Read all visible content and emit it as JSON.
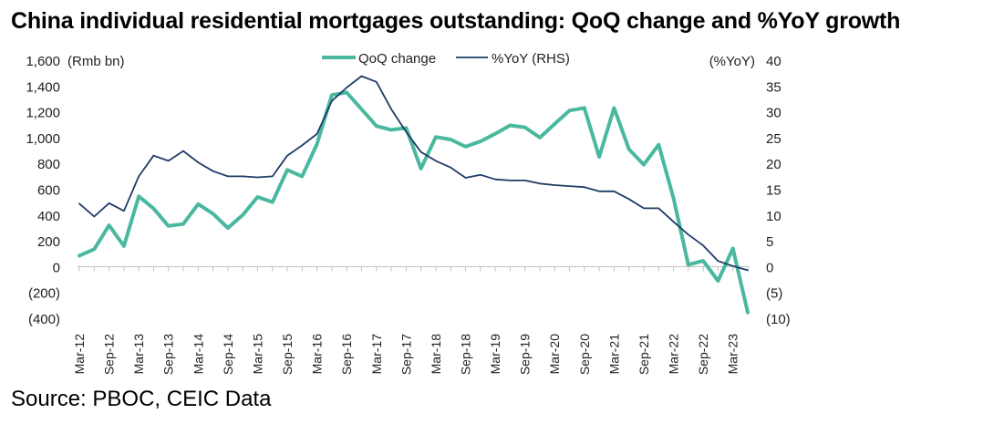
{
  "title": "China individual residential mortgages outstanding: QoQ change and %YoY growth",
  "source": "Source: PBOC, CEIC Data",
  "colors": {
    "qoq": "#4ab89e",
    "yoy": "#1f3b66",
    "axis": "#bfbfbf"
  },
  "chart_data": {
    "type": "line",
    "left_axis_label": "(Rmb bn)",
    "right_axis_label": "(%YoY)",
    "ylim_left": [
      -400,
      1600
    ],
    "ylim_right": [
      -10,
      40
    ],
    "left_ticks": [
      "1,600",
      "1,400",
      "1,200",
      "1,000",
      "800",
      "600",
      "400",
      "200",
      "0",
      "(200)",
      "(400)"
    ],
    "right_ticks": [
      "40",
      "35",
      "30",
      "25",
      "20",
      "15",
      "10",
      "5",
      "0",
      "(5)",
      "(10)"
    ],
    "x_tick_labels": [
      "Mar-12",
      "Sep-12",
      "Mar-13",
      "Sep-13",
      "Mar-14",
      "Sep-14",
      "Mar-15",
      "Sep-15",
      "Mar-16",
      "Sep-16",
      "Mar-17",
      "Sep-17",
      "Mar-18",
      "Sep-18",
      "Mar-19",
      "Sep-19",
      "Mar-20",
      "Sep-20",
      "Mar-21",
      "Sep-21",
      "Mar-22",
      "Sep-22",
      "Mar-23"
    ],
    "x": [
      "Mar-12",
      "Jun-12",
      "Sep-12",
      "Dec-12",
      "Mar-13",
      "Jun-13",
      "Sep-13",
      "Dec-13",
      "Mar-14",
      "Jun-14",
      "Sep-14",
      "Dec-14",
      "Mar-15",
      "Jun-15",
      "Sep-15",
      "Dec-15",
      "Mar-16",
      "Jun-16",
      "Sep-16",
      "Dec-16",
      "Mar-17",
      "Jun-17",
      "Sep-17",
      "Dec-17",
      "Mar-18",
      "Jun-18",
      "Sep-18",
      "Dec-18",
      "Mar-19",
      "Jun-19",
      "Sep-19",
      "Dec-19",
      "Mar-20",
      "Jun-20",
      "Sep-20",
      "Dec-20",
      "Mar-21",
      "Jun-21",
      "Sep-21",
      "Dec-21",
      "Mar-22",
      "Jun-22",
      "Sep-22",
      "Dec-22",
      "Mar-23",
      "Jun-23"
    ],
    "series": [
      {
        "name": "QoQ change",
        "axis": "left",
        "values": [
          85,
          135,
          320,
          160,
          545,
          450,
          315,
          330,
          485,
          410,
          300,
          400,
          540,
          500,
          750,
          700,
          950,
          1330,
          1350,
          1220,
          1090,
          1060,
          1075,
          760,
          1005,
          985,
          930,
          970,
          1030,
          1095,
          1080,
          1000,
          1105,
          1210,
          1230,
          850,
          1230,
          910,
          790,
          945,
          530,
          15,
          45,
          -110,
          140,
          -355
        ]
      },
      {
        "name": "%YoY (RHS)",
        "axis": "right",
        "values": [
          12.2,
          9.7,
          12.3,
          10.8,
          17.5,
          21.5,
          20.5,
          22.4,
          20.2,
          18.5,
          17.5,
          17.5,
          17.3,
          17.5,
          21.5,
          23.5,
          25.7,
          32.1,
          34.7,
          36.9,
          35.8,
          30.5,
          26.1,
          22.2,
          20.5,
          19.2,
          17.2,
          17.8,
          16.9,
          16.7,
          16.7,
          16.1,
          15.8,
          15.6,
          15.4,
          14.6,
          14.6,
          13.1,
          11.3,
          11.3,
          8.7,
          6.2,
          4.1,
          1.1,
          0.1,
          -0.7
        ]
      }
    ]
  }
}
